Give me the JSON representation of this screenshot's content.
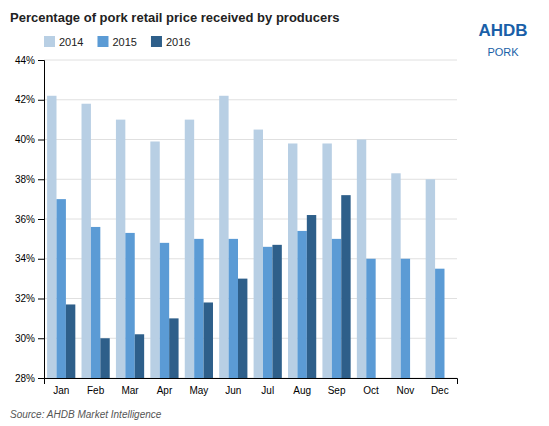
{
  "chart_data": {
    "type": "bar",
    "title": "Percentage of pork retail price received by producers",
    "categories": [
      "Jan",
      "Feb",
      "Mar",
      "Apr",
      "May",
      "Jun",
      "Jul",
      "Aug",
      "Sep",
      "Oct",
      "Nov",
      "Dec"
    ],
    "series": [
      {
        "name": "2014",
        "color": "#b8cfe4",
        "values": [
          42.2,
          41.8,
          41.0,
          39.9,
          41.0,
          42.2,
          40.5,
          39.8,
          39.8,
          40.0,
          38.3,
          38.0
        ]
      },
      {
        "name": "2015",
        "color": "#5b9bd5",
        "values": [
          37.0,
          35.6,
          35.3,
          34.8,
          35.0,
          35.0,
          34.6,
          35.4,
          35.0,
          34.0,
          34.0,
          33.5
        ]
      },
      {
        "name": "2016",
        "color": "#2e5f8a",
        "values": [
          31.7,
          30.0,
          30.2,
          31.0,
          31.8,
          33.0,
          34.7,
          36.2,
          37.2,
          null,
          null,
          null
        ]
      }
    ],
    "ylim": [
      28,
      44
    ],
    "yticks": [
      {
        "value": 28,
        "label": "28%"
      },
      {
        "value": 30,
        "label": "30%"
      },
      {
        "value": 32,
        "label": "32%"
      },
      {
        "value": 34,
        "label": "34%"
      },
      {
        "value": 36,
        "label": "36%"
      },
      {
        "value": 38,
        "label": "38%"
      },
      {
        "value": 40,
        "label": "40%"
      },
      {
        "value": 42,
        "label": "42%"
      },
      {
        "value": 44,
        "label": "44%"
      }
    ],
    "grid": true,
    "legend": "upper left",
    "annotations": [
      "Source: AHDB Market Intelligence",
      "AHDB",
      "PORK"
    ]
  }
}
